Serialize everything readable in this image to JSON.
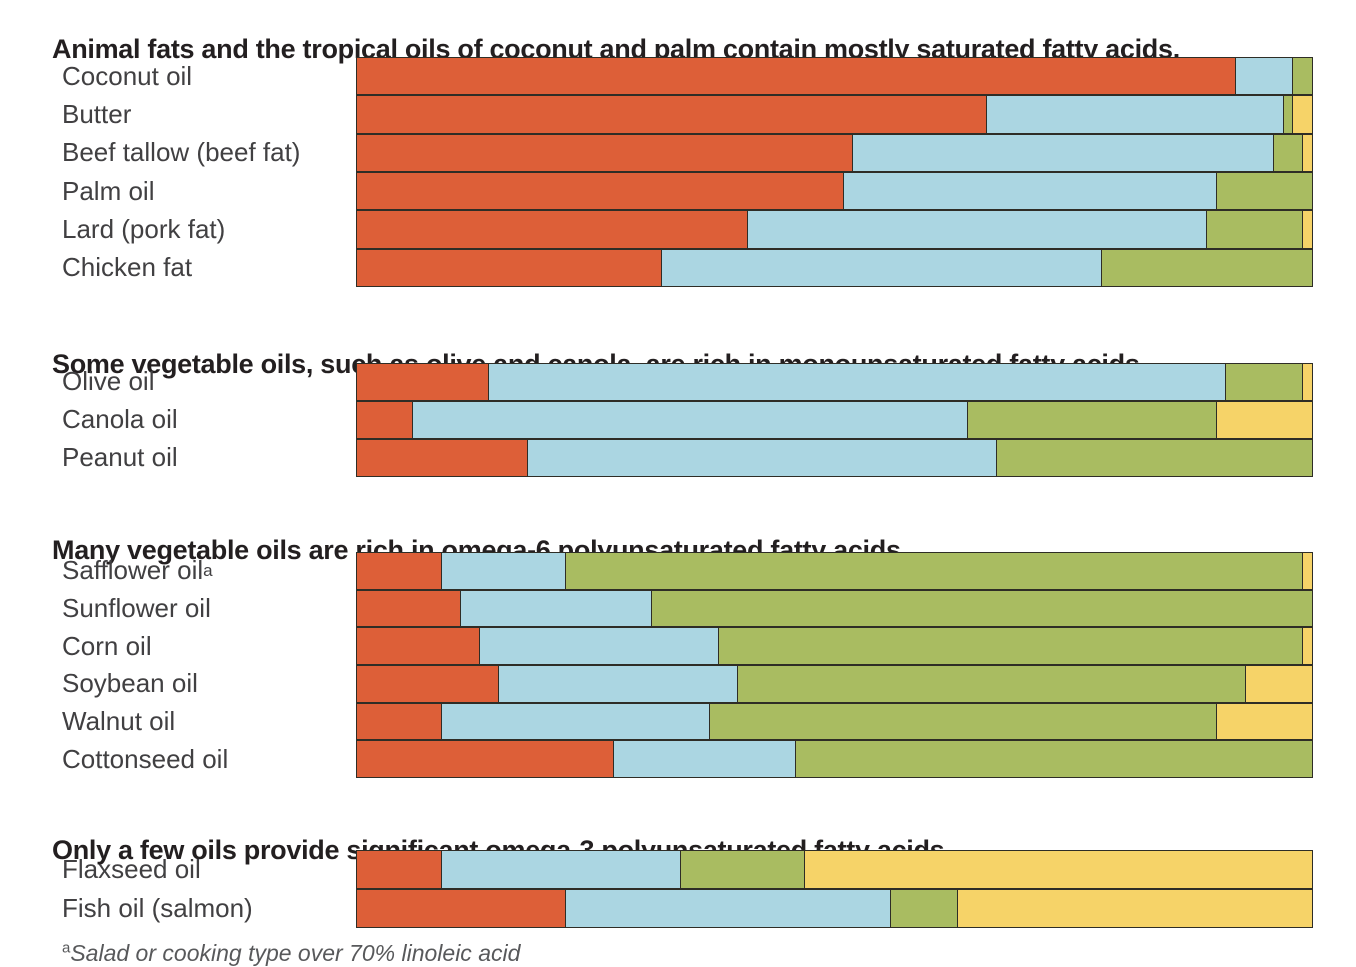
{
  "figure": {
    "background": "#ffffff",
    "footnote": {
      "sup": "a",
      "text": "Salad or cooking type over 70% linoleic acid"
    }
  },
  "colors": {
    "saturated": "#dd5f38",
    "monounsaturated": "#abd6e2",
    "omega6": "#a9bc61",
    "omega3": "#f6d368",
    "border": "#2e2d26",
    "title_text": "#231f20",
    "label_text": "#414042"
  },
  "chart_data": {
    "type": "bar",
    "orientation": "horizontal",
    "stacked": true,
    "unit": "percent of total fatty acids",
    "xlim": [
      0,
      100
    ],
    "grid": false,
    "legend": "none",
    "series_keys": [
      "saturated",
      "monounsaturated",
      "omega6",
      "omega3"
    ],
    "sections": [
      {
        "title": "Animal fats and the tropical oils of coconut and palm contain mostly saturated fatty acids.",
        "rows": [
          {
            "label": "Coconut oil",
            "values": [
              92,
              6,
              2,
              0
            ]
          },
          {
            "label": "Butter",
            "values": [
              66,
              31,
              1,
              2
            ]
          },
          {
            "label": "Beef tallow (beef fat)",
            "values": [
              52,
              44,
              3,
              1
            ]
          },
          {
            "label": "Palm oil",
            "values": [
              51,
              39,
              10,
              0
            ]
          },
          {
            "label": "Lard (pork fat)",
            "values": [
              41,
              48,
              10,
              1
            ]
          },
          {
            "label": "Chicken fat",
            "values": [
              32,
              46,
              22,
              0
            ]
          }
        ]
      },
      {
        "title": "Some vegetable oils, such as olive and canola, are rich in monounsaturated fatty acids.",
        "rows": [
          {
            "label": "Olive oil",
            "values": [
              14,
              77,
              8,
              1
            ]
          },
          {
            "label": "Canola oil",
            "values": [
              6,
              58,
              26,
              10
            ]
          },
          {
            "label": "Peanut oil",
            "values": [
              18,
              49,
              33,
              0
            ]
          }
        ]
      },
      {
        "title": "Many vegetable oils are rich in omega-6 polyunsaturated fatty acids.",
        "rows": [
          {
            "label": "Safflower oil",
            "sup": "a",
            "values": [
              9,
              13,
              77,
              1
            ]
          },
          {
            "label": "Sunflower oil",
            "values": [
              11,
              20,
              69,
              0
            ]
          },
          {
            "label": "Corn oil",
            "values": [
              13,
              25,
              61,
              1
            ]
          },
          {
            "label": "Soybean oil",
            "values": [
              15,
              25,
              53,
              7
            ]
          },
          {
            "label": "Walnut oil",
            "values": [
              9,
              28,
              53,
              10
            ]
          },
          {
            "label": "Cottonseed oil",
            "values": [
              27,
              19,
              54,
              0
            ]
          }
        ]
      },
      {
        "title": "Only a few oils provide significant omega-3 polyunsaturated fatty acids.",
        "rows": [
          {
            "label": "Flaxseed oil",
            "values": [
              9,
              25,
              13,
              53
            ]
          },
          {
            "label": "Fish oil (salmon)",
            "values": [
              22,
              34,
              7,
              37
            ]
          }
        ]
      }
    ]
  }
}
